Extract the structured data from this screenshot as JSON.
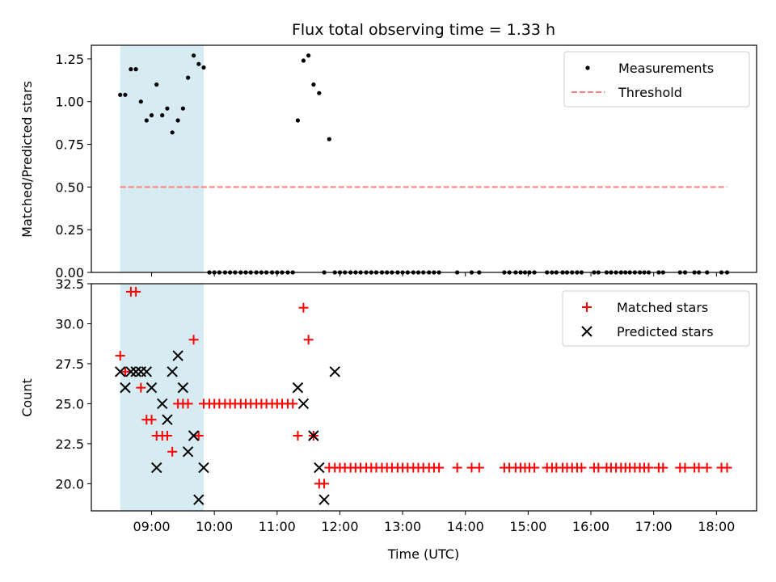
{
  "title": "Flux total observing time = 1.33 h",
  "x_axis": {
    "label": "Time (UTC)",
    "ticks": [
      "09:00",
      "10:00",
      "11:00",
      "12:00",
      "13:00",
      "14:00",
      "15:00",
      "16:00",
      "17:00",
      "18:00"
    ]
  },
  "colors": {
    "threshold": "#ff7f7f",
    "matched": "#ff0000",
    "predicted": "#000000",
    "span": "#add8e6"
  },
  "chart_data": [
    {
      "type": "scatter",
      "title": "Flux total observing time = 1.33 h",
      "xlabel": "",
      "ylabel": "Matched/Predicted stars",
      "x_unit": "hours (UTC)",
      "xlim": [
        8.04,
        18.64
      ],
      "ylim": [
        0,
        1.33
      ],
      "yticks": [
        "0.00",
        "0.25",
        "0.50",
        "0.75",
        "1.00",
        "1.25"
      ],
      "legend_position": "top-right",
      "highlight_span": [
        8.5,
        9.83
      ],
      "threshold": {
        "name": "Threshold",
        "y": 0.5,
        "x_range": [
          8.5,
          18.17
        ]
      },
      "series": [
        {
          "name": "Measurements",
          "points": [
            [
              8.5,
              1.04
            ],
            [
              8.58,
              1.04
            ],
            [
              8.67,
              1.19
            ],
            [
              8.75,
              1.19
            ],
            [
              8.83,
              1.0
            ],
            [
              8.92,
              0.89
            ],
            [
              9.0,
              0.92
            ],
            [
              9.08,
              1.1
            ],
            [
              9.17,
              0.92
            ],
            [
              9.25,
              0.96
            ],
            [
              9.33,
              0.82
            ],
            [
              9.42,
              0.89
            ],
            [
              9.5,
              0.96
            ],
            [
              9.58,
              1.14
            ],
            [
              9.67,
              1.27
            ],
            [
              9.75,
              1.22
            ],
            [
              9.83,
              1.2
            ],
            [
              9.92,
              0
            ],
            [
              10.0,
              0
            ],
            [
              10.08,
              0
            ],
            [
              10.17,
              0
            ],
            [
              10.25,
              0
            ],
            [
              10.33,
              0
            ],
            [
              10.42,
              0
            ],
            [
              10.5,
              0
            ],
            [
              10.58,
              0
            ],
            [
              10.67,
              0
            ],
            [
              10.75,
              0
            ],
            [
              10.83,
              0
            ],
            [
              10.92,
              0
            ],
            [
              11.0,
              0
            ],
            [
              11.08,
              0
            ],
            [
              11.17,
              0
            ],
            [
              11.25,
              0
            ],
            [
              11.33,
              0.89
            ],
            [
              11.42,
              1.24
            ],
            [
              11.5,
              1.27
            ],
            [
              11.58,
              1.1
            ],
            [
              11.67,
              1.05
            ],
            [
              11.75,
              0
            ],
            [
              11.83,
              0.78
            ],
            [
              11.92,
              0
            ],
            [
              12.0,
              0
            ],
            [
              12.08,
              0
            ],
            [
              12.17,
              0
            ],
            [
              12.25,
              0
            ],
            [
              12.33,
              0
            ],
            [
              12.42,
              0
            ],
            [
              12.5,
              0
            ],
            [
              12.58,
              0
            ],
            [
              12.67,
              0
            ],
            [
              12.75,
              0
            ],
            [
              12.83,
              0
            ],
            [
              12.92,
              0
            ],
            [
              13.0,
              0
            ],
            [
              13.08,
              0
            ],
            [
              13.17,
              0
            ],
            [
              13.25,
              0
            ],
            [
              13.33,
              0
            ],
            [
              13.42,
              0
            ],
            [
              13.5,
              0
            ],
            [
              13.58,
              0
            ],
            [
              13.87,
              0
            ],
            [
              14.1,
              0
            ],
            [
              14.22,
              0
            ],
            [
              14.62,
              0
            ],
            [
              14.7,
              0
            ],
            [
              14.8,
              0
            ],
            [
              14.88,
              0
            ],
            [
              14.95,
              0
            ],
            [
              15.02,
              0
            ],
            [
              15.1,
              0
            ],
            [
              15.3,
              0
            ],
            [
              15.38,
              0
            ],
            [
              15.45,
              0
            ],
            [
              15.55,
              0
            ],
            [
              15.62,
              0
            ],
            [
              15.7,
              0
            ],
            [
              15.78,
              0
            ],
            [
              15.85,
              0
            ],
            [
              16.05,
              0
            ],
            [
              16.12,
              0
            ],
            [
              16.25,
              0
            ],
            [
              16.32,
              0
            ],
            [
              16.4,
              0
            ],
            [
              16.48,
              0
            ],
            [
              16.55,
              0
            ],
            [
              16.62,
              0
            ],
            [
              16.7,
              0
            ],
            [
              16.78,
              0
            ],
            [
              16.85,
              0
            ],
            [
              16.92,
              0
            ],
            [
              17.08,
              0
            ],
            [
              17.15,
              0
            ],
            [
              17.42,
              0
            ],
            [
              17.5,
              0
            ],
            [
              17.65,
              0
            ],
            [
              17.72,
              0
            ],
            [
              17.85,
              0
            ],
            [
              18.08,
              0
            ],
            [
              18.17,
              0
            ]
          ]
        }
      ]
    },
    {
      "type": "scatter",
      "title": "",
      "xlabel": "Time (UTC)",
      "ylabel": "Count",
      "x_unit": "hours (UTC)",
      "xlim": [
        8.04,
        18.64
      ],
      "ylim": [
        18.3,
        32.5
      ],
      "yticks": [
        "20.0",
        "22.5",
        "25.0",
        "27.5",
        "30.0",
        "32.5"
      ],
      "legend_position": "top-right",
      "highlight_span": [
        8.5,
        9.83
      ],
      "series": [
        {
          "name": "Matched stars",
          "points": [
            [
              8.5,
              28
            ],
            [
              8.58,
              27
            ],
            [
              8.67,
              32
            ],
            [
              8.75,
              32
            ],
            [
              8.83,
              26
            ],
            [
              8.92,
              24
            ],
            [
              9.0,
              24
            ],
            [
              9.08,
              23
            ],
            [
              9.17,
              23
            ],
            [
              9.25,
              23
            ],
            [
              9.33,
              22
            ],
            [
              9.42,
              25
            ],
            [
              9.5,
              25
            ],
            [
              9.58,
              25
            ],
            [
              9.67,
              29
            ],
            [
              9.75,
              23
            ],
            [
              9.83,
              25
            ],
            [
              9.92,
              25
            ],
            [
              10.0,
              25
            ],
            [
              10.08,
              25
            ],
            [
              10.17,
              25
            ],
            [
              10.25,
              25
            ],
            [
              10.33,
              25
            ],
            [
              10.42,
              25
            ],
            [
              10.5,
              25
            ],
            [
              10.58,
              25
            ],
            [
              10.67,
              25
            ],
            [
              10.75,
              25
            ],
            [
              10.83,
              25
            ],
            [
              10.92,
              25
            ],
            [
              11.0,
              25
            ],
            [
              11.08,
              25
            ],
            [
              11.17,
              25
            ],
            [
              11.25,
              25
            ],
            [
              11.33,
              23
            ],
            [
              11.42,
              31
            ],
            [
              11.5,
              29
            ],
            [
              11.58,
              23
            ],
            [
              11.67,
              20
            ],
            [
              11.75,
              20
            ],
            [
              11.83,
              21
            ],
            [
              11.92,
              21
            ],
            [
              12.0,
              21
            ],
            [
              12.08,
              21
            ],
            [
              12.17,
              21
            ],
            [
              12.25,
              21
            ],
            [
              12.33,
              21
            ],
            [
              12.42,
              21
            ],
            [
              12.5,
              21
            ],
            [
              12.58,
              21
            ],
            [
              12.67,
              21
            ],
            [
              12.75,
              21
            ],
            [
              12.83,
              21
            ],
            [
              12.92,
              21
            ],
            [
              13.0,
              21
            ],
            [
              13.08,
              21
            ],
            [
              13.17,
              21
            ],
            [
              13.25,
              21
            ],
            [
              13.33,
              21
            ],
            [
              13.42,
              21
            ],
            [
              13.5,
              21
            ],
            [
              13.58,
              21
            ],
            [
              13.87,
              21
            ],
            [
              14.1,
              21
            ],
            [
              14.22,
              21
            ],
            [
              14.62,
              21
            ],
            [
              14.7,
              21
            ],
            [
              14.8,
              21
            ],
            [
              14.88,
              21
            ],
            [
              14.95,
              21
            ],
            [
              15.02,
              21
            ],
            [
              15.1,
              21
            ],
            [
              15.3,
              21
            ],
            [
              15.38,
              21
            ],
            [
              15.45,
              21
            ],
            [
              15.55,
              21
            ],
            [
              15.62,
              21
            ],
            [
              15.7,
              21
            ],
            [
              15.78,
              21
            ],
            [
              15.85,
              21
            ],
            [
              16.05,
              21
            ],
            [
              16.12,
              21
            ],
            [
              16.25,
              21
            ],
            [
              16.32,
              21
            ],
            [
              16.4,
              21
            ],
            [
              16.48,
              21
            ],
            [
              16.55,
              21
            ],
            [
              16.62,
              21
            ],
            [
              16.7,
              21
            ],
            [
              16.78,
              21
            ],
            [
              16.85,
              21
            ],
            [
              16.92,
              21
            ],
            [
              17.08,
              21
            ],
            [
              17.15,
              21
            ],
            [
              17.42,
              21
            ],
            [
              17.5,
              21
            ],
            [
              17.65,
              21
            ],
            [
              17.72,
              21
            ],
            [
              17.85,
              21
            ],
            [
              18.08,
              21
            ],
            [
              18.17,
              21
            ]
          ]
        },
        {
          "name": "Predicted stars",
          "points": [
            [
              8.5,
              27
            ],
            [
              8.58,
              26
            ],
            [
              8.67,
              27
            ],
            [
              8.75,
              27
            ],
            [
              8.83,
              27
            ],
            [
              8.92,
              27
            ],
            [
              9.0,
              26
            ],
            [
              9.08,
              21
            ],
            [
              9.17,
              25
            ],
            [
              9.25,
              24
            ],
            [
              9.33,
              27
            ],
            [
              9.42,
              28
            ],
            [
              9.5,
              26
            ],
            [
              9.58,
              22
            ],
            [
              9.67,
              23
            ],
            [
              9.75,
              19
            ],
            [
              9.83,
              21
            ],
            [
              11.33,
              26
            ],
            [
              11.42,
              25
            ],
            [
              11.58,
              23
            ],
            [
              11.67,
              21
            ],
            [
              11.75,
              19
            ],
            [
              11.92,
              27
            ]
          ]
        }
      ]
    }
  ]
}
